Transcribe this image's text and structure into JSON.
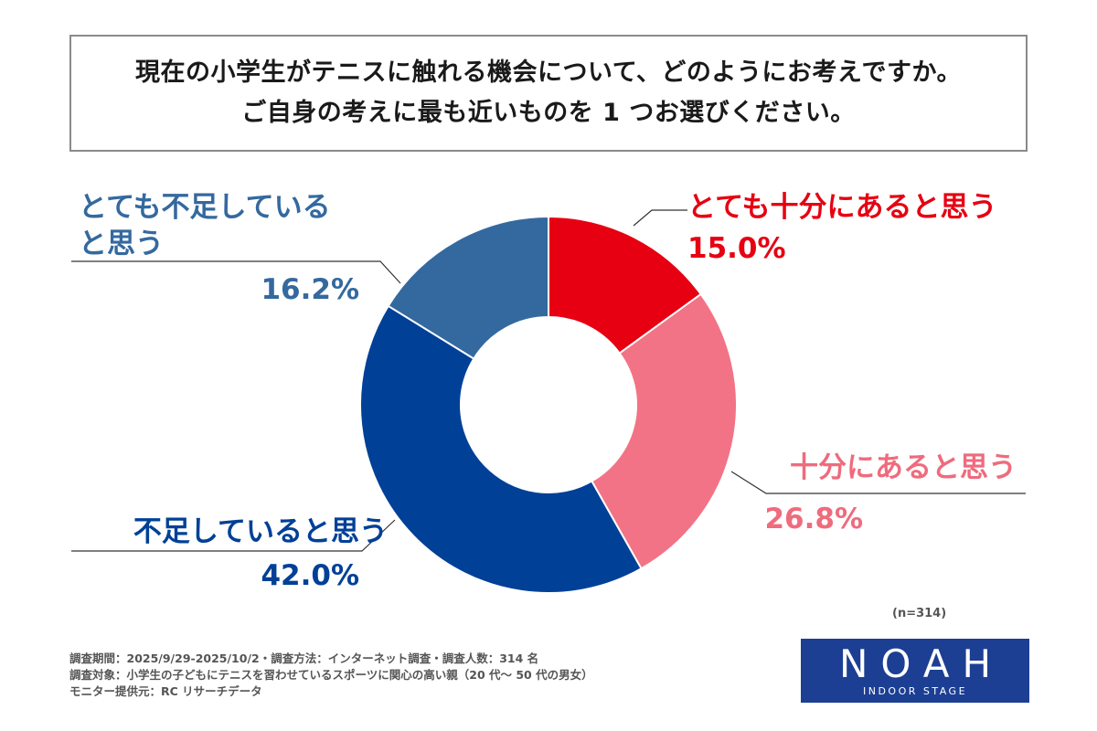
{
  "question": {
    "line1": "現在の小学生がテニスに触れる機会について、どのようにお考えですか。",
    "line2": "ご自身の考えに最も近いものを 1 つお選びください。"
  },
  "chart_data": {
    "type": "pie",
    "donut": true,
    "slices": [
      {
        "label_lines": [
          "とても十分にあると思う"
        ],
        "value": 15.0,
        "value_label": "15.0%",
        "color": "#e60012",
        "text_color": "#e60012"
      },
      {
        "label_lines": [
          "十分にあると思う"
        ],
        "value": 26.8,
        "value_label": "26.8%",
        "color": "#f27385",
        "text_color": "#ef6b7d"
      },
      {
        "label_lines": [
          "不足していると思う"
        ],
        "value": 42.0,
        "value_label": "42.0%",
        "color": "#004097",
        "text_color": "#004097"
      },
      {
        "label_lines": [
          "とても不足している",
          "と思う"
        ],
        "value": 16.2,
        "value_label": "16.2%",
        "color": "#34699f",
        "text_color": "#34699f"
      }
    ],
    "start": "12 o'clock",
    "direction": "clockwise"
  },
  "n_label": "(n=314)",
  "footnotes": {
    "line1": "調査期間：2025/9/29-2025/10/2・調査方法：インターネット調査・調査人数：314 名",
    "line2": "調査対象：小学生の子どもにテニスを習わせているスポーツに関心の高い親（20 代～ 50 代の男女）",
    "line3": "モニター提供元：RC リサーチデータ"
  },
  "logo": {
    "main": "NOAH",
    "sub": "INDOOR STAGE",
    "color": "#1c3f94"
  }
}
